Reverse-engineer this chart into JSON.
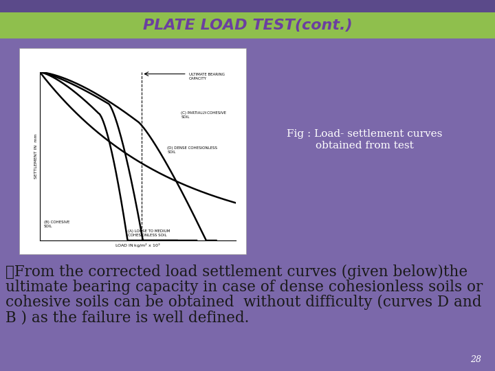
{
  "title": "PLATE LOAD TEST(cont.)",
  "title_color": "#6B3FA0",
  "title_bg_color": "#8FBF4D",
  "main_bg_color": "#7B68AA",
  "fig_caption_line1": "Fig : Load- settlement curves",
  "fig_caption_line2": "obtained from test",
  "fig_caption_color": "#FFFFFF",
  "body_text_line1": "❖From the corrected load settlement curves (given below)the",
  "body_text_line2": "ultimate bearing capacity in case of dense cohesionless soils or",
  "body_text_line3": "cohesive soils can be obtained  without difficulty (curves D and",
  "body_text_line4": "B ) as the failure is well defined.",
  "body_text_color": "#1a1a1a",
  "page_number": "28",
  "page_number_color": "#FFFFFF",
  "top_bar_color": "#5B4A8A"
}
